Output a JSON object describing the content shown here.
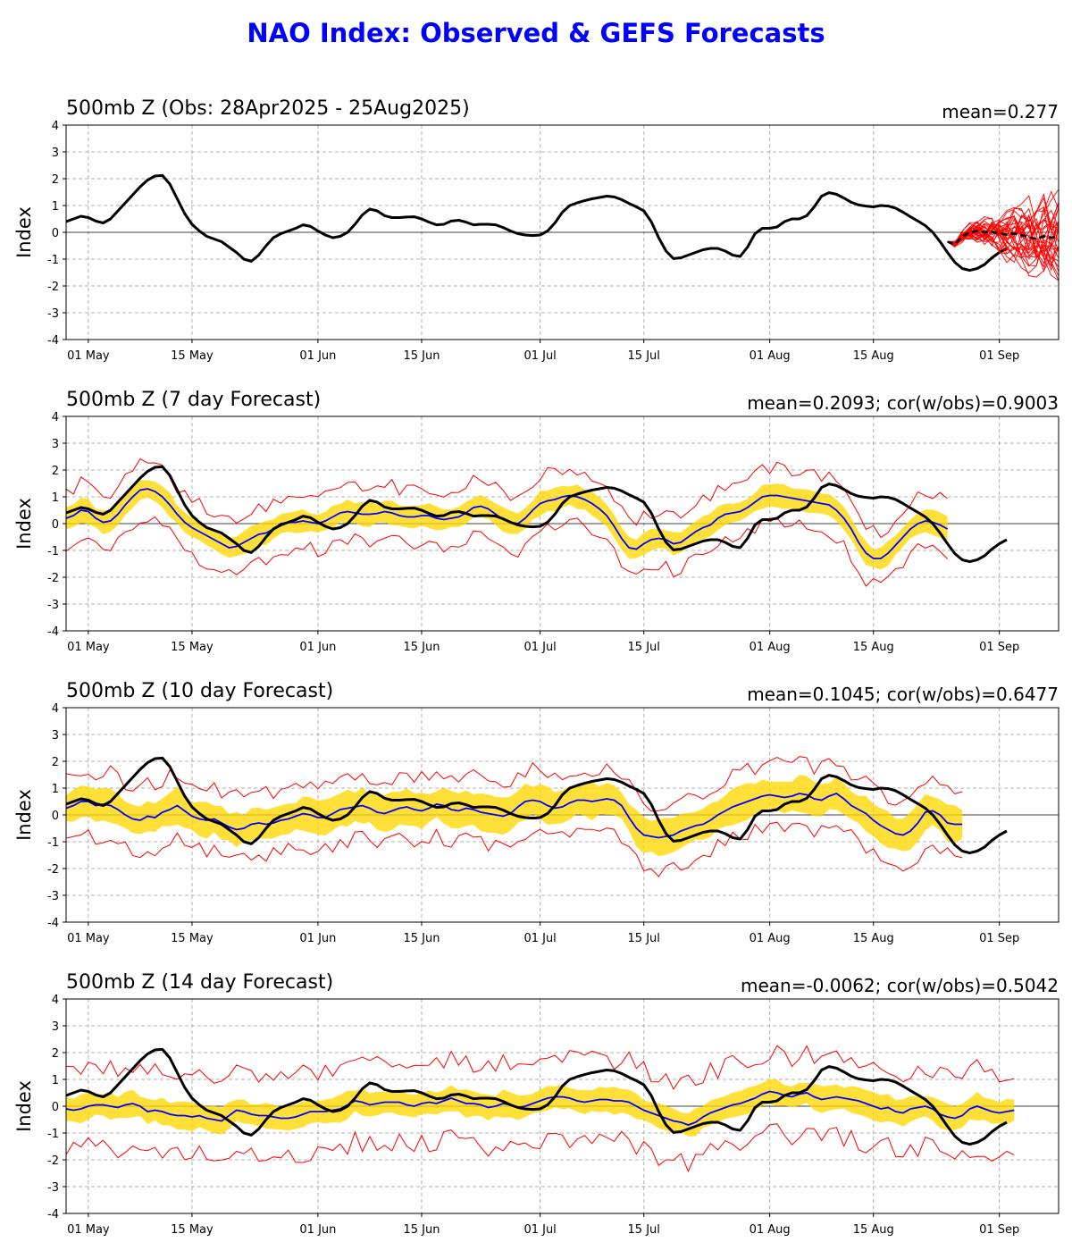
{
  "page_title": "NAO Index: Observed & GEFS Forecasts",
  "colors": {
    "title": "#0000ff",
    "observed": "#000000",
    "ensemble_mean": "#0000ff",
    "spread_band": "#ffd700",
    "members_envelope": "#ff0000"
  },
  "chart_data": [
    {
      "type": "line",
      "title": "500mb Z (Obs: 28Apr2025 - 25Aug2025)",
      "stat_text": "mean=0.277",
      "ylabel": "Index",
      "ylim": [
        -4,
        4
      ],
      "yticks": [
        -4,
        -3,
        -2,
        -1,
        0,
        1,
        2,
        3,
        4
      ],
      "xlim": [
        "2025-04-28",
        "2025-09-09"
      ],
      "xticks": [
        {
          "date": "2025-05-01",
          "label": "01 May"
        },
        {
          "date": "2025-05-15",
          "label": "15 May"
        },
        {
          "date": "2025-06-01",
          "label": "01 Jun"
        },
        {
          "date": "2025-06-15",
          "label": "15 Jun"
        },
        {
          "date": "2025-07-01",
          "label": "01 Jul"
        },
        {
          "date": "2025-07-15",
          "label": "15 Jul"
        },
        {
          "date": "2025-08-01",
          "label": "01 Aug"
        },
        {
          "date": "2025-08-15",
          "label": "15 Aug"
        },
        {
          "date": "2025-09-01",
          "label": "01 Sep"
        }
      ],
      "grid": true,
      "observed": {
        "start": "2025-04-28",
        "values": [
          0.4,
          0.5,
          0.6,
          0.55,
          0.42,
          0.35,
          0.5,
          0.8,
          1.1,
          1.4,
          1.7,
          1.95,
          2.1,
          2.12,
          1.8,
          1.25,
          0.7,
          0.3,
          0.05,
          -0.15,
          -0.25,
          -0.35,
          -0.55,
          -0.75,
          -1.0,
          -1.08,
          -0.85,
          -0.5,
          -0.2,
          -0.05,
          0.05,
          0.15,
          0.28,
          0.22,
          0.05,
          -0.1,
          -0.2,
          -0.15,
          0.0,
          0.3,
          0.65,
          0.87,
          0.8,
          0.62,
          0.55,
          0.55,
          0.57,
          0.58,
          0.5,
          0.38,
          0.28,
          0.3,
          0.42,
          0.45,
          0.38,
          0.28,
          0.3,
          0.3,
          0.28,
          0.18,
          0.05,
          -0.05,
          -0.1,
          -0.12,
          -0.1,
          0.05,
          0.35,
          0.75,
          1.0,
          1.1,
          1.18,
          1.25,
          1.3,
          1.35,
          1.32,
          1.22,
          1.08,
          0.95,
          0.8,
          0.4,
          -0.2,
          -0.7,
          -0.98,
          -0.95,
          -0.85,
          -0.75,
          -0.65,
          -0.6,
          -0.6,
          -0.7,
          -0.85,
          -0.9,
          -0.55,
          -0.05,
          0.15,
          0.15,
          0.2,
          0.4,
          0.5,
          0.5,
          0.62,
          0.95,
          1.35,
          1.48,
          1.42,
          1.28,
          1.12,
          1.02,
          0.98,
          0.95,
          1.0,
          0.98,
          0.9,
          0.75,
          0.58,
          0.42,
          0.25,
          0.0,
          -0.35,
          -0.75,
          -1.12,
          -1.35,
          -1.42,
          -1.35,
          -1.2,
          -0.95,
          -0.75,
          -0.6
        ]
      },
      "forecast_mean": {
        "start": "2025-08-25",
        "values": [
          -0.35,
          -0.45,
          -0.15,
          0.0,
          0.05,
          0.0,
          0.02,
          -0.05,
          -0.08,
          -0.05,
          -0.1,
          -0.18,
          -0.25,
          -0.15,
          -0.2,
          -0.15
        ]
      },
      "forecast_members_spread": [
        -1.8,
        1.6
      ]
    },
    {
      "type": "line",
      "title": "500mb Z (7 day Forecast)",
      "stat_text": "mean=0.2093; cor(w/obs)=0.9003",
      "ylabel": "Index",
      "ylim": [
        -4,
        4
      ],
      "start": "2025-04-28",
      "ens_mean": [
        0.2,
        0.3,
        0.5,
        0.45,
        0.2,
        0.05,
        0.1,
        0.35,
        0.7,
        1.0,
        1.25,
        1.3,
        1.2,
        1.0,
        0.7,
        0.35,
        0.05,
        -0.15,
        -0.3,
        -0.45,
        -0.6,
        -0.75,
        -0.9,
        -0.85,
        -0.7,
        -0.55,
        -0.4,
        -0.35,
        -0.2,
        0.0,
        0.05,
        0.05,
        0.1,
        0.05,
        0.0,
        0.1,
        0.25,
        0.4,
        0.45,
        0.4,
        0.35,
        0.35,
        0.38,
        0.45,
        0.4,
        0.3,
        0.25,
        0.25,
        0.3,
        0.3,
        0.2,
        0.15,
        0.2,
        0.25,
        0.4,
        0.6,
        0.65,
        0.55,
        0.35,
        0.15,
        0.05,
        0.0,
        0.2,
        0.5,
        0.75,
        0.85,
        0.9,
        1.0,
        1.05,
        1.0,
        0.9,
        0.75,
        0.55,
        0.3,
        -0.1,
        -0.55,
        -0.9,
        -0.95,
        -0.75,
        -0.6,
        -0.55,
        -0.6,
        -0.75,
        -0.7,
        -0.5,
        -0.3,
        -0.15,
        -0.05,
        0.2,
        0.35,
        0.4,
        0.45,
        0.6,
        0.8,
        1.0,
        1.05,
        1.05,
        1.0,
        0.95,
        0.9,
        0.85,
        0.8,
        0.75,
        0.7,
        0.5,
        0.2,
        -0.2,
        -0.7,
        -1.1,
        -1.3,
        -1.3,
        -1.1,
        -0.8,
        -0.5,
        -0.2,
        0.0,
        0.1,
        0.05,
        -0.05,
        -0.2
      ],
      "band_halfwidth": 0.4,
      "envelope_halfwidth": 1.0,
      "observed_ref": "chart_data.0.observed"
    },
    {
      "type": "line",
      "title": "500mb Z (10 day Forecast)",
      "stat_text": "mean=0.1045; cor(w/obs)=0.6477",
      "ylabel": "Index",
      "ylim": [
        -4,
        4
      ],
      "start": "2025-04-28",
      "ens_mean": [
        0.25,
        0.35,
        0.5,
        0.5,
        0.35,
        0.4,
        0.35,
        0.2,
        0.0,
        -0.15,
        -0.2,
        -0.05,
        -0.1,
        0.1,
        0.2,
        0.35,
        0.15,
        -0.05,
        -0.15,
        -0.2,
        -0.15,
        -0.3,
        -0.45,
        -0.55,
        -0.5,
        -0.35,
        -0.3,
        -0.35,
        -0.3,
        -0.2,
        -0.15,
        -0.05,
        0.05,
        0.0,
        -0.1,
        -0.1,
        0.05,
        0.2,
        0.25,
        0.3,
        0.35,
        0.25,
        0.1,
        0.05,
        0.15,
        0.25,
        0.3,
        0.2,
        0.15,
        0.25,
        0.4,
        0.35,
        0.2,
        0.15,
        0.25,
        0.2,
        0.1,
        0.05,
        0.0,
        -0.05,
        0.05,
        0.3,
        0.5,
        0.55,
        0.5,
        0.35,
        0.25,
        0.3,
        0.45,
        0.55,
        0.55,
        0.5,
        0.55,
        0.6,
        0.55,
        0.35,
        -0.1,
        -0.5,
        -0.75,
        -0.8,
        -0.85,
        -0.8,
        -0.75,
        -0.6,
        -0.5,
        -0.4,
        -0.35,
        -0.2,
        0.0,
        0.15,
        0.3,
        0.4,
        0.5,
        0.6,
        0.7,
        0.75,
        0.7,
        0.65,
        0.7,
        0.8,
        0.75,
        0.6,
        0.55,
        0.7,
        0.8,
        0.6,
        0.35,
        0.2,
        0.05,
        -0.2,
        -0.4,
        -0.55,
        -0.7,
        -0.75,
        -0.6,
        -0.3,
        0.1,
        0.15,
        0.0,
        -0.3,
        -0.35,
        -0.35
      ],
      "band_halfwidth": 0.6,
      "envelope_halfwidth": 1.2,
      "observed_ref": "chart_data.0.observed"
    },
    {
      "type": "line",
      "title": "500mb Z (14 day Forecast)",
      "stat_text": "mean=-0.0062; cor(w/obs)=0.5042",
      "ylabel": "Index",
      "ylim": [
        -4,
        4
      ],
      "start": "2025-04-28",
      "ens_mean": [
        -0.1,
        -0.15,
        -0.1,
        0.0,
        0.05,
        0.05,
        0.0,
        -0.05,
        0.05,
        0.1,
        0.0,
        -0.2,
        -0.15,
        -0.2,
        -0.3,
        -0.35,
        -0.35,
        -0.4,
        -0.35,
        -0.45,
        -0.5,
        -0.55,
        -0.35,
        -0.15,
        -0.2,
        -0.3,
        -0.35,
        -0.35,
        -0.4,
        -0.45,
        -0.45,
        -0.4,
        -0.3,
        -0.2,
        -0.2,
        -0.2,
        -0.15,
        -0.1,
        0.05,
        0.2,
        0.15,
        0.05,
        0.1,
        0.15,
        0.15,
        0.15,
        0.05,
        0.0,
        0.1,
        0.15,
        0.1,
        0.2,
        0.3,
        0.2,
        0.1,
        0.1,
        0.05,
        -0.05,
        0.0,
        0.1,
        0.05,
        -0.05,
        0.0,
        0.1,
        0.2,
        0.3,
        0.35,
        0.35,
        0.3,
        0.2,
        0.15,
        0.2,
        0.25,
        0.25,
        0.2,
        0.2,
        0.15,
        0.0,
        -0.15,
        -0.25,
        -0.35,
        -0.45,
        -0.55,
        -0.6,
        -0.7,
        -0.6,
        -0.4,
        -0.25,
        -0.15,
        -0.05,
        0.05,
        0.1,
        0.2,
        0.3,
        0.45,
        0.55,
        0.5,
        0.4,
        0.35,
        0.45,
        0.5,
        0.35,
        0.25,
        0.3,
        0.35,
        0.3,
        0.25,
        0.2,
        0.1,
        0.0,
        -0.1,
        -0.05,
        -0.2,
        -0.25,
        -0.1,
        -0.05,
        0.0,
        -0.1,
        -0.3,
        -0.4,
        -0.45,
        -0.35,
        -0.1,
        0.0,
        -0.1,
        -0.2,
        -0.25,
        -0.2,
        -0.15
      ],
      "band_halfwidth": 0.45,
      "envelope_halfwidth": 1.5,
      "observed_ref": "chart_data.0.observed"
    }
  ]
}
